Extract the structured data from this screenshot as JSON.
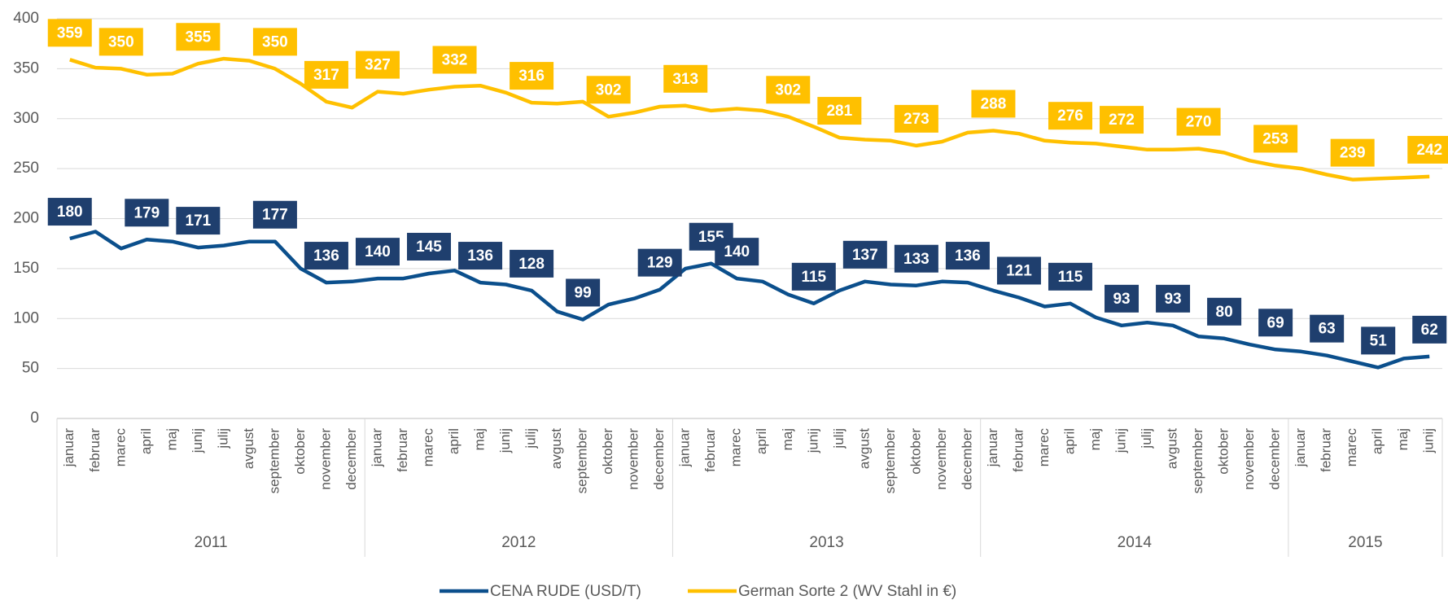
{
  "chart_data": {
    "type": "line",
    "categories": [
      "januar",
      "februar",
      "marec",
      "april",
      "maj",
      "junij",
      "julij",
      "avgust",
      "september",
      "oktober",
      "november",
      "december",
      "januar",
      "februar",
      "marec",
      "april",
      "maj",
      "junij",
      "julij",
      "avgust",
      "september",
      "oktober",
      "november",
      "december",
      "januar",
      "februar",
      "marec",
      "april",
      "maj",
      "junij",
      "julij",
      "avgust",
      "september",
      "oktober",
      "november",
      "december",
      "januar",
      "februar",
      "marec",
      "april",
      "maj",
      "junij",
      "julij",
      "avgust",
      "september",
      "oktober",
      "november",
      "december",
      "januar",
      "februar",
      "marec",
      "april",
      "maj",
      "junij"
    ],
    "category_groups": [
      {
        "label": "2011",
        "size": 12
      },
      {
        "label": "2012",
        "size": 12
      },
      {
        "label": "2013",
        "size": 12
      },
      {
        "label": "2014",
        "size": 12
      },
      {
        "label": "2015",
        "size": 6
      }
    ],
    "series": [
      {
        "name": "CENA RUDE (USD/T)",
        "color": "#0b4f8c",
        "label_color": "#1f3f6e",
        "values": [
          180,
          187,
          170,
          179,
          177,
          171,
          173,
          177,
          177,
          150,
          136,
          137,
          140,
          140,
          145,
          148,
          136,
          134,
          128,
          107,
          99,
          114,
          120,
          129,
          150,
          155,
          140,
          137,
          124,
          115,
          128,
          137,
          134,
          133,
          137,
          136,
          128,
          121,
          112,
          115,
          101,
          93,
          96,
          93,
          82,
          80,
          74,
          69,
          67,
          63,
          57,
          51,
          60,
          62
        ],
        "value_labels": [
          "180",
          null,
          null,
          "179",
          null,
          "171",
          null,
          null,
          "177",
          null,
          "136",
          null,
          "140",
          null,
          "145",
          null,
          "136",
          null,
          "128",
          null,
          "99",
          null,
          null,
          "129",
          null,
          "155",
          "140",
          null,
          null,
          "115",
          null,
          "137",
          null,
          "133",
          null,
          "136",
          null,
          "121",
          null,
          "115",
          null,
          "93",
          null,
          "93",
          null,
          "80",
          null,
          "69",
          null,
          "63",
          null,
          "51",
          null,
          "62"
        ]
      },
      {
        "name": "German Sorte 2 (WV Stahl in €)",
        "color": "#ffc000",
        "label_color": "#ffc000",
        "values": [
          359,
          351,
          350,
          344,
          345,
          355,
          360,
          358,
          350,
          335,
          317,
          311,
          327,
          325,
          329,
          332,
          333,
          326,
          316,
          315,
          317,
          302,
          306,
          312,
          313,
          308,
          310,
          308,
          302,
          292,
          281,
          279,
          278,
          273,
          277,
          286,
          288,
          285,
          278,
          276,
          275,
          272,
          269,
          269,
          270,
          266,
          258,
          253,
          250,
          244,
          239,
          240,
          241,
          242
        ],
        "value_labels": [
          "359",
          null,
          "350",
          null,
          null,
          "355",
          null,
          null,
          "350",
          null,
          "317",
          null,
          "327",
          null,
          null,
          "332",
          null,
          null,
          "316",
          null,
          null,
          "302",
          null,
          null,
          "313",
          null,
          null,
          null,
          "302",
          null,
          "281",
          null,
          null,
          "273",
          null,
          null,
          "288",
          null,
          null,
          "276",
          null,
          "272",
          null,
          null,
          "270",
          null,
          null,
          "253",
          null,
          null,
          "239",
          null,
          null,
          "242"
        ]
      }
    ],
    "ylim": [
      0,
      400
    ],
    "yticks": [
      0,
      50,
      100,
      150,
      200,
      250,
      300,
      350,
      400
    ],
    "grid": true,
    "legend": "bottom"
  }
}
